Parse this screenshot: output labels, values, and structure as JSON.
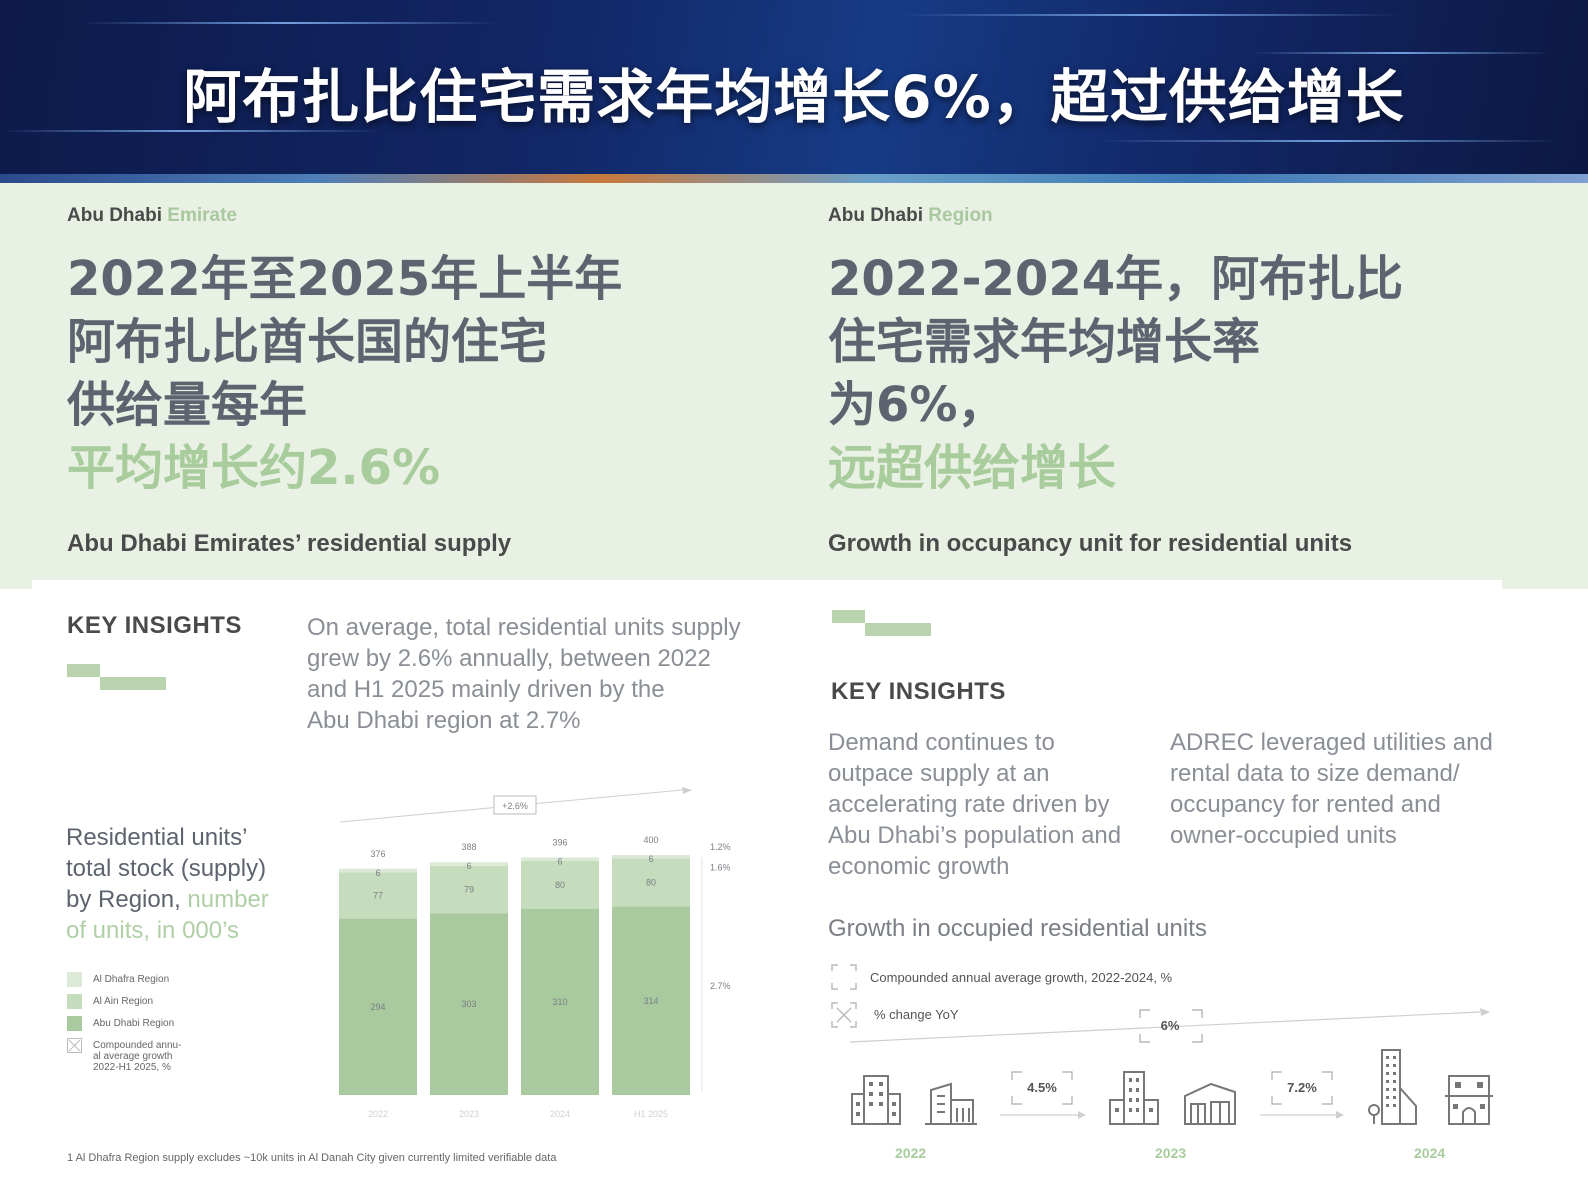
{
  "banner": {
    "title": "阿布扎比住宅需求年均增长6%，超过供给增长"
  },
  "left_panel": {
    "label_main": "Abu Dhabi",
    "label_accent": "Emirate",
    "headline_lines": [
      "2022年至2025年上半年",
      "阿布扎比酋长国的住宅",
      "供给量每年"
    ],
    "headline_highlight": "平均增长约2.6%",
    "subtitle": "Abu Dhabi Emirates’ residential supply",
    "key_insights": "KEY INSIGHTS",
    "insight_text": [
      "On average, total residential units supply",
      "grew by 2.6% annually, between 2022",
      "and H1 2025 mainly driven by the",
      "Abu Dhabi region at 2.7%"
    ],
    "chart_title_lines": [
      "Residential units’",
      "total stock (supply)",
      "by Region,"
    ],
    "chart_title_accent_lines": [
      "number",
      "of units, in 000’s"
    ],
    "legend": [
      {
        "label": "Al Dhafra Region",
        "color": "#dbe9d6"
      },
      {
        "label": "Al Ain Region",
        "color": "#c5dcbd"
      },
      {
        "label": "Abu Dhabi Region",
        "color": "#a9c99e"
      },
      {
        "label": "Compounded annu-\nal average growth\n2022-H1 2025, %",
        "color": "none"
      }
    ],
    "legend_cagr_lines": [
      "Compounded annu-",
      "al average growth",
      "2022-H1 2025, %"
    ],
    "footnote": "1 Al Dhafra Region supply excludes ~10k units in Al Danah City given currently limited verifiable data"
  },
  "right_panel": {
    "label_main": "Abu Dhabi",
    "label_accent": "Region",
    "headline_lines": [
      "2022-2024年，阿布扎比",
      "住宅需求年均增长率",
      "为6%，"
    ],
    "headline_highlight": "远超供给增长",
    "subtitle": "Growth in occupancy unit for residential units",
    "key_insights": "KEY INSIGHTS",
    "insight_left": [
      "Demand continues to",
      "outpace supply at an",
      "accelerating rate driven by",
      "Abu Dhabi’s population and",
      "economic growth"
    ],
    "insight_right": [
      "ADREC leveraged utilities and",
      "rental data to size demand/",
      "occupancy for rented and",
      "owner-occupied units"
    ],
    "growth_title": "Growth in occupied residential units",
    "legend_cagr": "Compounded annual average growth, 2022-2024, %",
    "legend_yoy": "% change YoY",
    "cagr_value": "6%",
    "yoy_values": [
      "4.5%",
      "7.2%"
    ],
    "years": [
      "2022",
      "2023",
      "2024"
    ],
    "icons": [
      "office-building-icon",
      "apartment-icon",
      "tower-icon",
      "shop-icon",
      "skyscraper-icon",
      "house-icon"
    ]
  },
  "chart_data": {
    "type": "bar",
    "stacked": true,
    "categories": [
      "2022",
      "2023",
      "2024",
      "H1 2025"
    ],
    "series": [
      {
        "name": "Abu Dhabi Region",
        "values": [
          294,
          303,
          310,
          314
        ],
        "color": "#a9c99e"
      },
      {
        "name": "Al Ain Region",
        "values": [
          77,
          79,
          80,
          80
        ],
        "color": "#c5dcbd"
      },
      {
        "name": "Al Dhafra Region",
        "values": [
          6,
          6,
          6,
          6
        ],
        "color": "#dbe9d6"
      }
    ],
    "totals": [
      376,
      388,
      396,
      400
    ],
    "cagr_total": "+2.6%",
    "cagr_by_region": [
      {
        "region": "Al Dhafra Region",
        "value": "1.2%"
      },
      {
        "region": "Al Ain Region",
        "value": "1.6%"
      },
      {
        "region": "Abu Dhabi Region",
        "value": "2.7%"
      }
    ],
    "ylim": [
      0,
      400
    ]
  }
}
